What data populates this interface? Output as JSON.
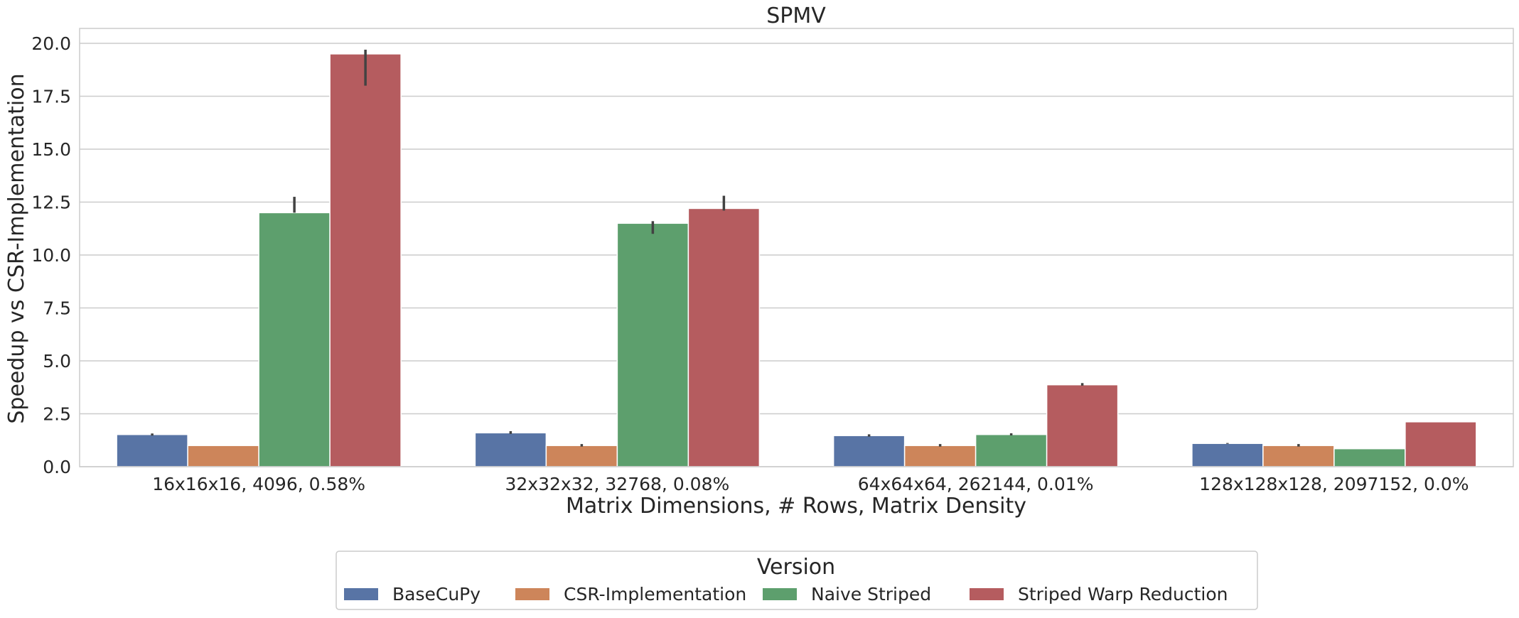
{
  "chart_data": {
    "type": "bar",
    "title": "SPMV",
    "xlabel": "Matrix Dimensions, # Rows, Matrix Density",
    "ylabel": "Speedup vs CSR-Implementation",
    "ylim": [
      0,
      20.7
    ],
    "yticks": [
      "0.0",
      "2.5",
      "5.0",
      "7.5",
      "10.0",
      "12.5",
      "15.0",
      "17.5",
      "20.0"
    ],
    "grid": true,
    "categories": [
      "16x16x16, 4096, 0.58%",
      "32x32x32, 32768, 0.08%",
      "64x64x64, 262144, 0.01%",
      "128x128x128, 2097152, 0.0%"
    ],
    "series": [
      {
        "name": "BaseCuPy",
        "color": "#5874a5",
        "values": [
          1.52,
          1.6,
          1.47,
          1.1
        ],
        "err_low": [
          1.47,
          1.55,
          1.42,
          1.08
        ],
        "err_high": [
          1.57,
          1.68,
          1.53,
          1.12
        ]
      },
      {
        "name": "CSR-Implementation",
        "color": "#cd855a",
        "values": [
          1.0,
          1.0,
          1.0,
          1.0
        ],
        "err_low": [
          1.0,
          0.95,
          0.95,
          0.95
        ],
        "err_high": [
          1.0,
          1.07,
          1.07,
          1.07
        ]
      },
      {
        "name": "Naive Striped",
        "color": "#5d9f6d",
        "values": [
          12.0,
          11.5,
          1.52,
          0.85
        ],
        "err_low": [
          12.0,
          11.0,
          1.48,
          0.85
        ],
        "err_high": [
          12.75,
          11.6,
          1.58,
          0.85
        ]
      },
      {
        "name": "Striped Warp Reduction",
        "color": "#b55c5f",
        "values": [
          19.5,
          12.2,
          3.87,
          2.12
        ],
        "err_low": [
          18.0,
          12.1,
          3.83,
          2.12
        ],
        "err_high": [
          19.7,
          12.8,
          3.95,
          2.12
        ]
      }
    ],
    "legend": {
      "title": "Version",
      "placement": "bottom-center"
    }
  }
}
